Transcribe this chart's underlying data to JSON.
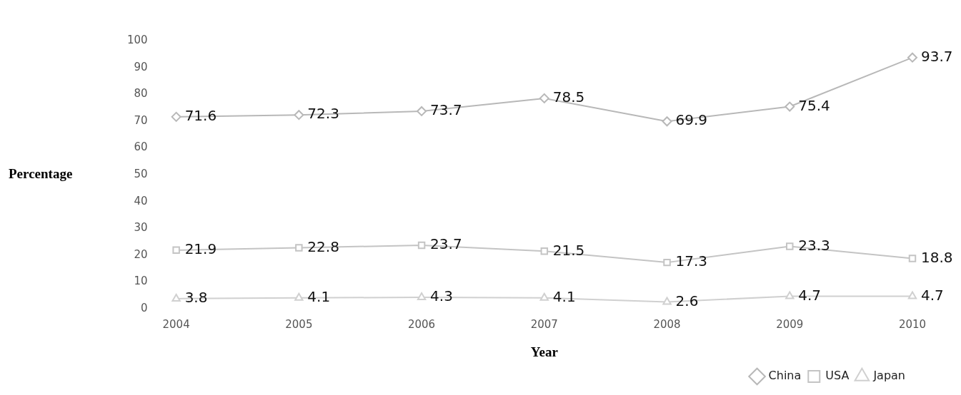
{
  "chart_data": {
    "type": "line",
    "xlabel": "Year",
    "ylabel": "Percentage",
    "categories": [
      "2004",
      "2005",
      "2006",
      "2007",
      "2008",
      "2009",
      "2010"
    ],
    "series": [
      {
        "name": "China",
        "color": "#b8b8b8",
        "marker": "diamond",
        "values": [
          71.6,
          72.3,
          73.7,
          78.5,
          69.9,
          75.4,
          93.7
        ]
      },
      {
        "name": "USA",
        "color": "#c4c4c4",
        "marker": "square",
        "values": [
          21.9,
          22.8,
          23.7,
          21.5,
          17.3,
          23.3,
          18.8
        ]
      },
      {
        "name": "Japan",
        "color": "#d0d0d0",
        "marker": "triangle",
        "values": [
          3.8,
          4.1,
          4.3,
          4.1,
          2.6,
          4.7,
          4.7
        ]
      }
    ],
    "ylim": [
      0,
      100
    ],
    "yticks": [
      0,
      10,
      20,
      30,
      40,
      50,
      60,
      70,
      80,
      90,
      100
    ],
    "grid": false,
    "legend": "bottom right",
    "data_labels": true
  }
}
